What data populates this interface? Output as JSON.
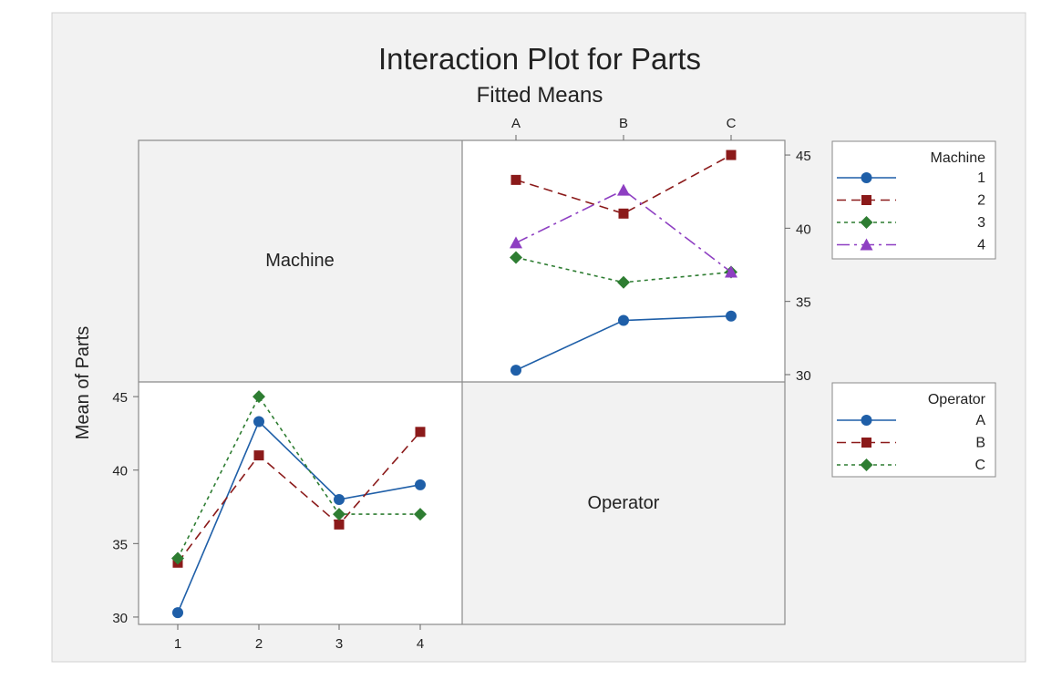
{
  "chart_data": {
    "type": "line",
    "title": "Interaction Plot for Parts",
    "subtitle": "Fitted Means",
    "ylabel": "Mean of Parts",
    "diagonal_labels": {
      "machine": "Machine",
      "operator": "Operator"
    },
    "panels": [
      {
        "id": "machine-by-operator",
        "x_factor": "Operator",
        "categories": [
          "A",
          "B",
          "C"
        ],
        "ylim": [
          29.5,
          46
        ],
        "yticks": [
          30,
          35,
          40,
          45
        ],
        "legend_title": "Machine",
        "series": [
          {
            "name": "1",
            "values": [
              30.3,
              33.7,
              34.0
            ],
            "color": "#1f5fa8",
            "marker": "circle",
            "dash": "solid"
          },
          {
            "name": "2",
            "values": [
              43.3,
              41.0,
              45.0
            ],
            "color": "#8b1a1a",
            "marker": "square",
            "dash": "dash"
          },
          {
            "name": "3",
            "values": [
              38.0,
              36.3,
              37.0
            ],
            "color": "#2e7d32",
            "marker": "diamond",
            "dash": "dot"
          },
          {
            "name": "4",
            "values": [
              39.0,
              42.6,
              37.0
            ],
            "color": "#8e3fc2",
            "marker": "triangle",
            "dash": "dashdot"
          }
        ]
      },
      {
        "id": "operator-by-machine",
        "x_factor": "Machine",
        "categories": [
          "1",
          "2",
          "3",
          "4"
        ],
        "ylim": [
          29.5,
          46
        ],
        "yticks": [
          30,
          35,
          40,
          45
        ],
        "legend_title": "Operator",
        "series": [
          {
            "name": "A",
            "values": [
              30.3,
              43.3,
              38.0,
              39.0
            ],
            "color": "#1f5fa8",
            "marker": "circle",
            "dash": "solid"
          },
          {
            "name": "B",
            "values": [
              33.7,
              41.0,
              36.3,
              42.6
            ],
            "color": "#8b1a1a",
            "marker": "square",
            "dash": "dash"
          },
          {
            "name": "C",
            "values": [
              34.0,
              45.0,
              37.0,
              37.0
            ],
            "color": "#2e7d32",
            "marker": "diamond",
            "dash": "dot"
          }
        ]
      }
    ]
  }
}
